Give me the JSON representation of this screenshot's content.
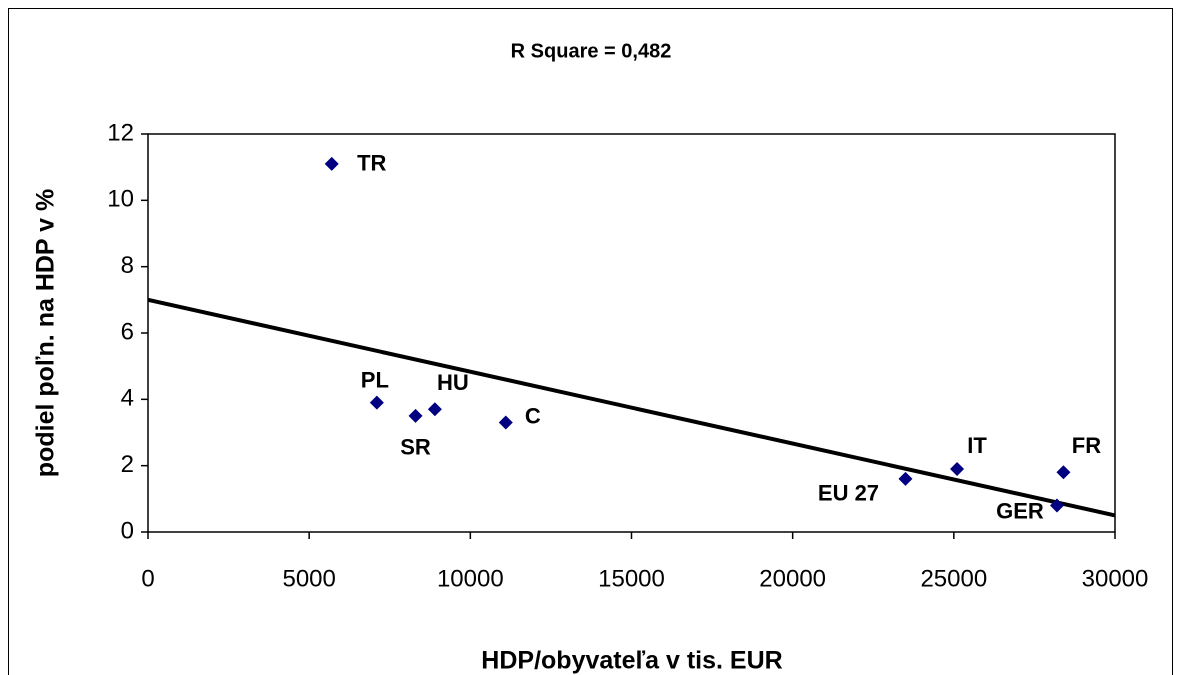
{
  "chart_data": {
    "type": "scatter",
    "title": "R Square = 0,482",
    "xlabel": "HDP/obyvateľa v tis. EUR",
    "ylabel": "podiel poľn. na HDP v %",
    "points": [
      "TR",
      "PL",
      "SR",
      "HU",
      "C",
      "EU 27",
      "IT",
      "FR",
      "GER"
    ],
    "x": [
      5700,
      7100,
      8300,
      8900,
      11100,
      23500,
      25100,
      28400,
      28200
    ],
    "y": [
      11.1,
      3.9,
      3.5,
      3.7,
      3.3,
      1.6,
      1.9,
      1.8,
      0.8
    ],
    "color": "#000080",
    "trendline": {
      "x": [
        0,
        30000
      ],
      "y": [
        7.0,
        0.5
      ],
      "color": "#000000"
    },
    "xlim": [
      0,
      30000
    ],
    "xticks": [
      0,
      5000,
      10000,
      15000,
      20000,
      25000,
      30000
    ],
    "ylim": [
      0,
      12
    ],
    "yticks": [
      0,
      2,
      4,
      6,
      8,
      10,
      12
    ]
  }
}
